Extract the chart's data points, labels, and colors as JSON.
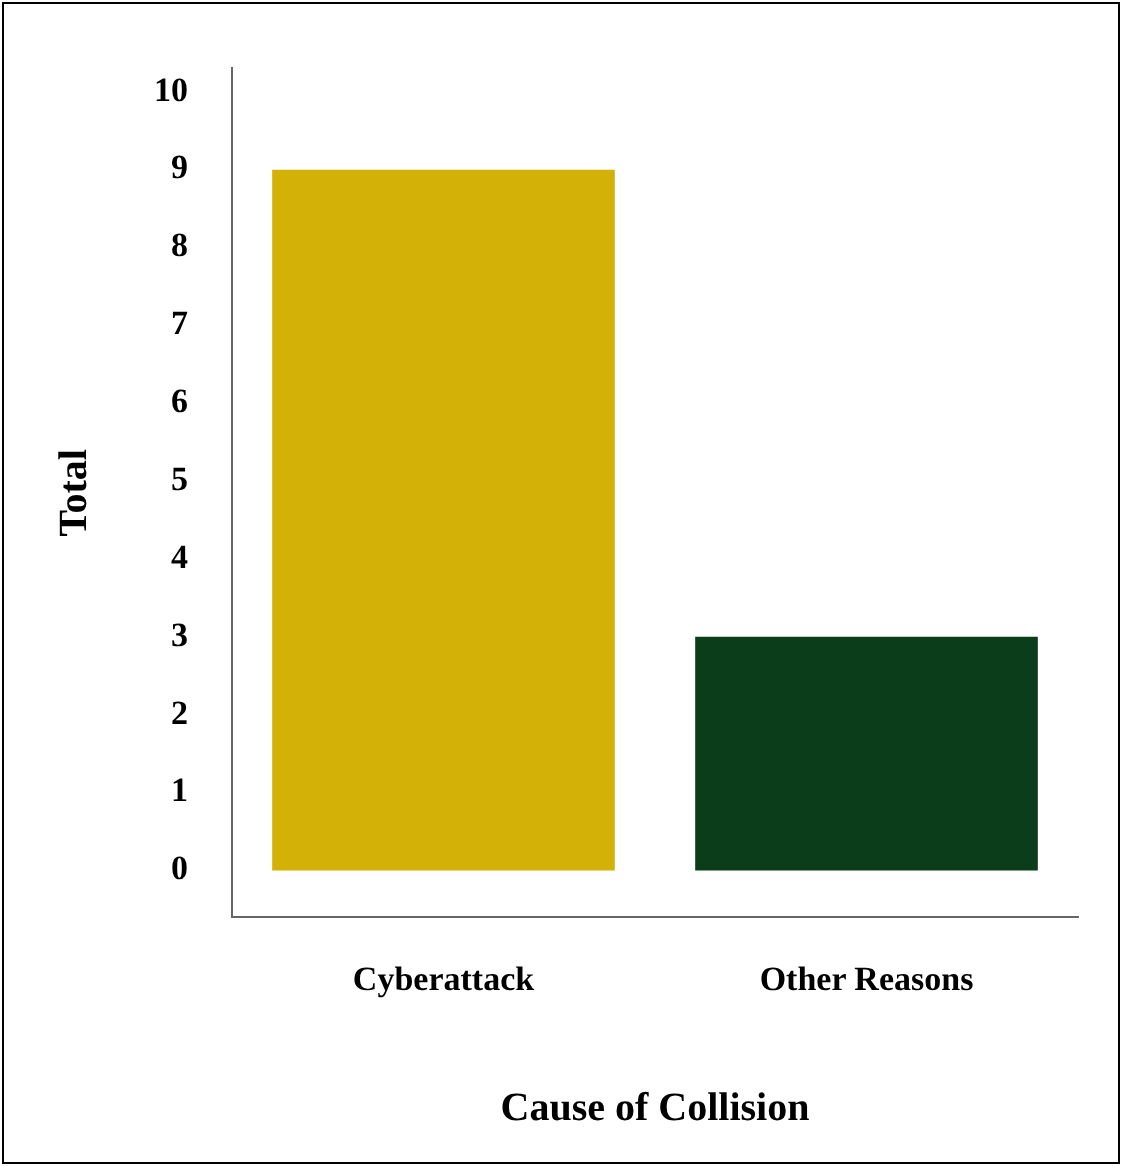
{
  "chart_data": {
    "type": "bar",
    "xlabel": "Cause of Collision",
    "ylabel": "Total",
    "categories": [
      "Cyberattack",
      "Other Reasons"
    ],
    "values": [
      9,
      3
    ],
    "colors": [
      "#d4b106",
      "#0b3d1a"
    ],
    "ylim": [
      -0.6,
      10.3
    ],
    "yticks": [
      0,
      1,
      2,
      3,
      4,
      5,
      6,
      7,
      8,
      9,
      10
    ],
    "grid": false,
    "legend": false
  }
}
